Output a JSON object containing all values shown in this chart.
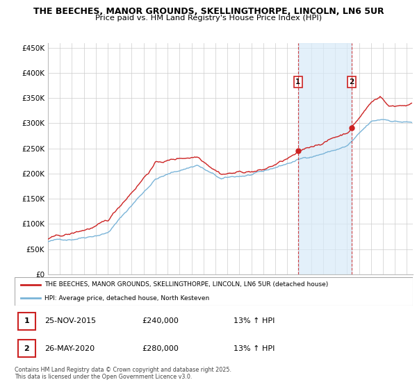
{
  "title_line1": "THE BEECHES, MANOR GROUNDS, SKELLINGTHORPE, LINCOLN, LN6 5UR",
  "title_line2": "Price paid vs. HM Land Registry's House Price Index (HPI)",
  "ylabel_ticks": [
    "£0",
    "£50K",
    "£100K",
    "£150K",
    "£200K",
    "£250K",
    "£300K",
    "£350K",
    "£400K",
    "£450K"
  ],
  "ytick_vals": [
    0,
    50000,
    100000,
    150000,
    200000,
    250000,
    300000,
    350000,
    400000,
    450000
  ],
  "ylim": [
    0,
    460000
  ],
  "xlim_start": 1995.0,
  "xlim_end": 2025.5,
  "sale1_x": 2015.9,
  "sale1_y": 240000,
  "sale2_x": 2020.4,
  "sale2_y": 280000,
  "hpi_color": "#7ab4d8",
  "price_color": "#cc2222",
  "shade_color": "#d8eaf8",
  "legend_label_price": "THE BEECHES, MANOR GROUNDS, SKELLINGTHORPE, LINCOLN, LN6 5UR (detached house)",
  "legend_label_hpi": "HPI: Average price, detached house, North Kesteven",
  "footnote": "Contains HM Land Registry data © Crown copyright and database right 2025.\nThis data is licensed under the Open Government Licence v3.0.",
  "table_rows": [
    {
      "num": "1",
      "date": "25-NOV-2015",
      "price": "£240,000",
      "change": "13% ↑ HPI"
    },
    {
      "num": "2",
      "date": "26-MAY-2020",
      "price": "£280,000",
      "change": "13% ↑ HPI"
    }
  ]
}
